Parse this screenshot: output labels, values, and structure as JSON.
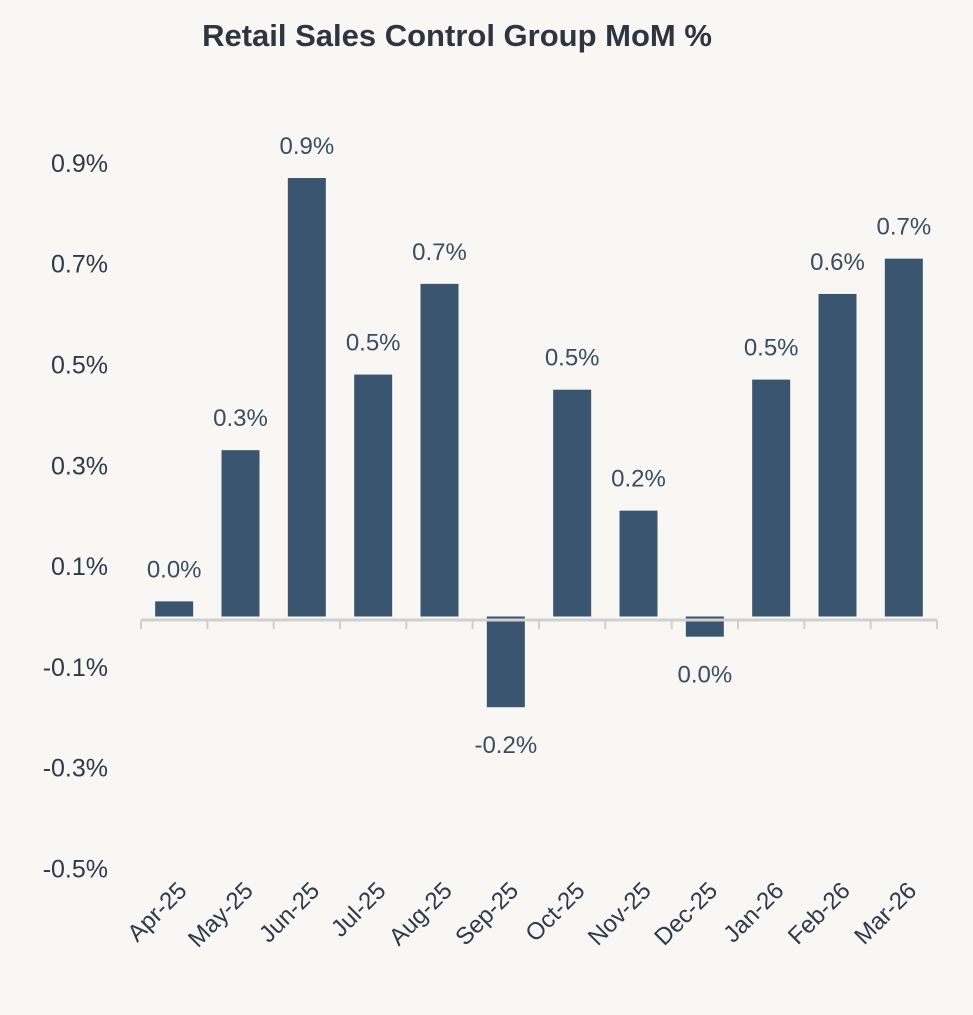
{
  "chart_data": {
    "type": "bar",
    "title": "Retail Sales Control Group MoM %",
    "xlabel": "",
    "ylabel": "",
    "categories": [
      "Apr-25",
      "May-25",
      "Jun-25",
      "Jul-25",
      "Aug-25",
      "Sep-25",
      "Oct-25",
      "Nov-25",
      "Dec-25",
      "Jan-26",
      "Feb-26",
      "Mar-26"
    ],
    "values": [
      0.03,
      0.33,
      0.87,
      0.48,
      0.66,
      -0.18,
      0.45,
      0.21,
      -0.04,
      0.47,
      0.64,
      0.71
    ],
    "data_labels": [
      "0.0%",
      "0.3%",
      "0.9%",
      "0.5%",
      "0.7%",
      "-0.2%",
      "0.5%",
      "0.2%",
      "0.0%",
      "0.5%",
      "0.6%",
      "0.7%"
    ],
    "yticks": [
      0.9,
      0.7,
      0.5,
      0.3,
      0.1,
      -0.1,
      -0.3,
      -0.5
    ],
    "ytick_labels": [
      "0.9%",
      "0.7%",
      "0.5%",
      "0.3%",
      "0.1%",
      "-0.1%",
      "-0.3%",
      "-0.5%"
    ],
    "ylim": [
      -0.5,
      0.9
    ],
    "grid": false,
    "legend": "none",
    "colors": {
      "bar": "#3a5570",
      "background": "#f9f7f4",
      "axis": "#d0d0d0"
    }
  }
}
